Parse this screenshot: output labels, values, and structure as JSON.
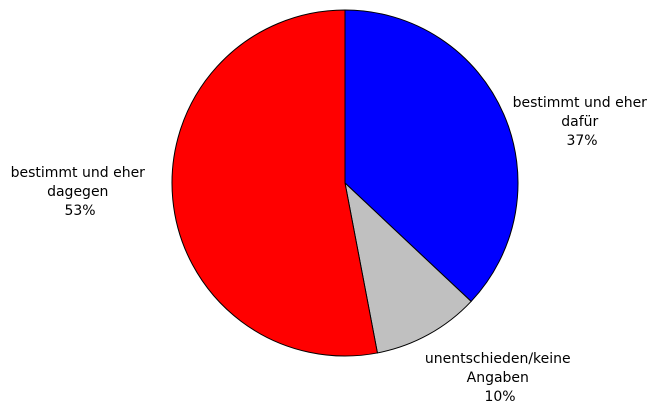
{
  "chart_data": {
    "type": "pie",
    "title": "",
    "start_angle_deg": 0,
    "direction": "clockwise",
    "slices": [
      {
        "label_lines": [
          "bestimmt und eher",
          "dafür"
        ],
        "value": 37,
        "value_label": "37%",
        "color": "#0000ff"
      },
      {
        "label_lines": [
          "unentschieden/keine",
          "Angaben"
        ],
        "value": 10,
        "value_label": "10%",
        "color": "#c0c0c0"
      },
      {
        "label_lines": [
          "bestimmt und eher",
          "dagegen"
        ],
        "value": 53,
        "value_label": "53%",
        "color": "#ff0000"
      }
    ]
  }
}
